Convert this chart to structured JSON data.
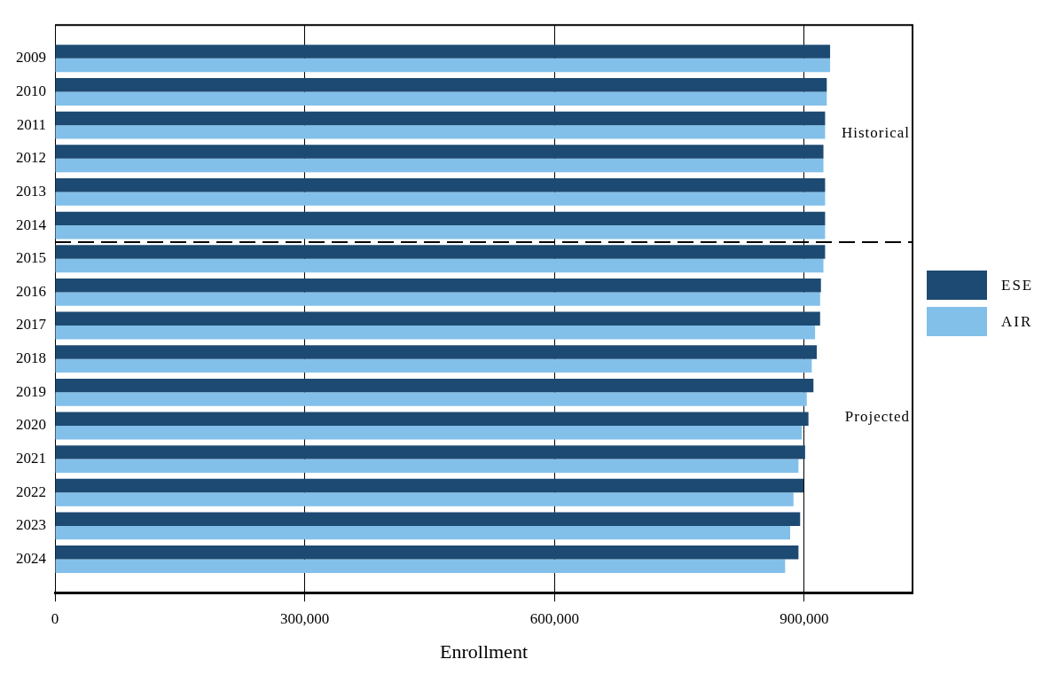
{
  "chart_data": {
    "type": "bar",
    "orientation": "horizontal",
    "xlabel": "Enrollment",
    "x": [
      2009,
      2010,
      2011,
      2012,
      2013,
      2014,
      2015,
      2016,
      2017,
      2018,
      2019,
      2020,
      2021,
      2022,
      2023,
      2024
    ],
    "series": [
      {
        "name": "ESE",
        "color": "#1d4a72",
        "values": [
          931000,
          927000,
          925000,
          923000,
          925000,
          925000,
          925000,
          920000,
          919000,
          915000,
          911000,
          905000,
          901000,
          899000,
          895000,
          893000
        ]
      },
      {
        "name": "AIR",
        "color": "#82c0ea",
        "values": [
          931000,
          927000,
          925000,
          923000,
          925000,
          925000,
          923000,
          919000,
          913000,
          909000,
          903000,
          897000,
          893000,
          887000,
          883000,
          877000
        ]
      }
    ],
    "xlim": [
      0,
      1030000
    ],
    "xticks": [
      0,
      {
        "value": 300000,
        "label": "300,000"
      },
      {
        "value": 600000,
        "label": "600,000"
      },
      {
        "value": 900000,
        "label": "900,000"
      }
    ],
    "yticks": [
      2009,
      2010,
      2011,
      2012,
      2013,
      2014,
      2015,
      2016,
      2017,
      2018,
      2019,
      2020,
      2021,
      2022,
      2023,
      2024
    ],
    "ylim": [
      2025,
      2008
    ],
    "ref_lines": [
      {
        "axis": "y",
        "value": 2014.5,
        "line_style": "dashed"
      }
    ],
    "annotations": [
      "Historical",
      "Projected"
    ],
    "grid": "x",
    "legend": "right"
  }
}
